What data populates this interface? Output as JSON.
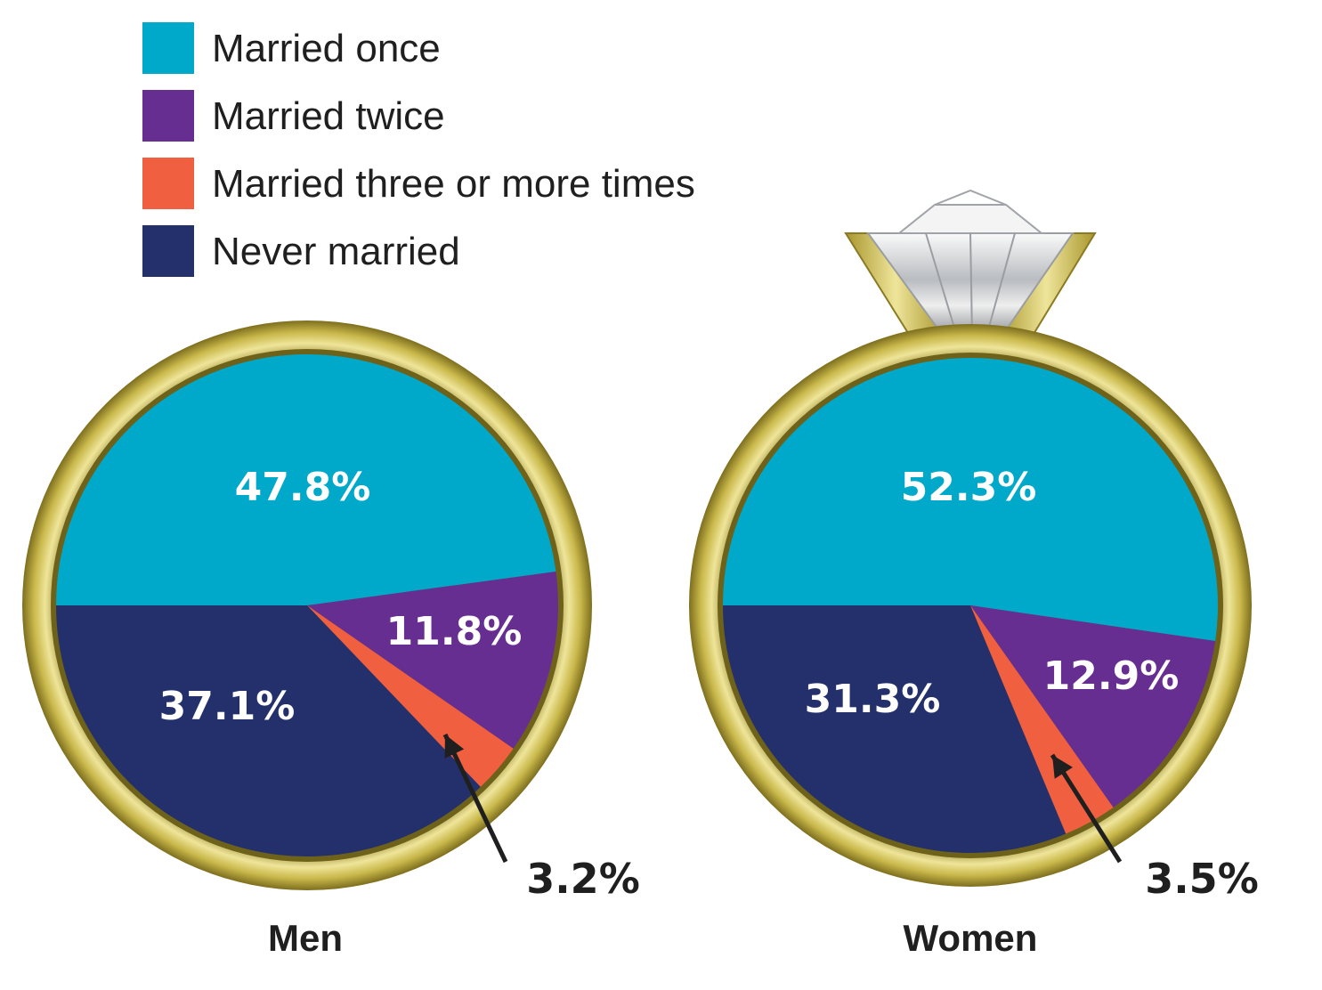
{
  "chart_data": [
    {
      "type": "pie",
      "label": "Men",
      "slices": [
        {
          "category": "Married once",
          "value": 47.8,
          "label": "47.8%"
        },
        {
          "category": "Married twice",
          "value": 11.8,
          "label": "11.8%"
        },
        {
          "category": "Married three or more times",
          "value": 3.2,
          "label": "3.2%"
        },
        {
          "category": "Never married",
          "value": 37.1,
          "label": "37.1%"
        }
      ]
    },
    {
      "type": "pie",
      "label": "Women",
      "slices": [
        {
          "category": "Married once",
          "value": 52.3,
          "label": "52.3%"
        },
        {
          "category": "Married twice",
          "value": 12.9,
          "label": "12.9%"
        },
        {
          "category": "Married three or more times",
          "value": 3.5,
          "label": "3.5%"
        },
        {
          "category": "Never married",
          "value": 31.3,
          "label": "31.3%"
        }
      ]
    }
  ],
  "legend": [
    {
      "label": "Married once",
      "color": "#00a8c9"
    },
    {
      "label": "Married twice",
      "color": "#672e91"
    },
    {
      "label": "Married three or more times",
      "color": "#ef5f40"
    },
    {
      "label": "Never married",
      "color": "#24306b"
    }
  ],
  "colors": {
    "ring_gold": "#c9b84a",
    "ring_gold_light": "#efe59a",
    "ring_gold_dark": "#8a7a22"
  },
  "icons": {
    "diamond": "diamond-gem-icon",
    "ring": "wedding-ring-icon"
  }
}
